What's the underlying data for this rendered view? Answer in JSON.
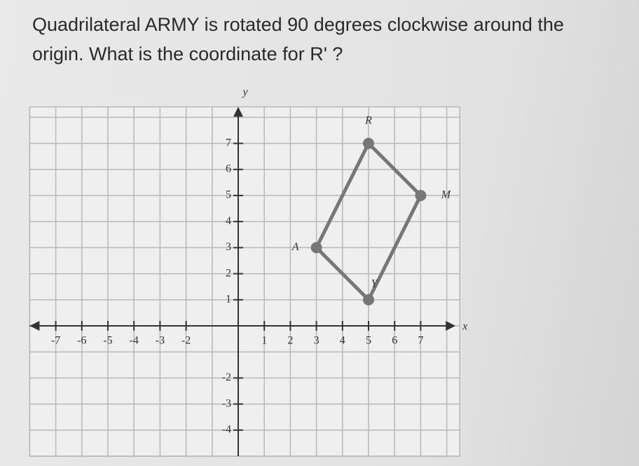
{
  "question": "Quadrilateral ARMY is rotated 90 degrees clockwise around the origin. What is the coordinate for R' ?",
  "graph": {
    "x_label": "x",
    "y_label": "y",
    "xticks": [
      -7,
      -6,
      -5,
      -4,
      -3,
      -2,
      1,
      2,
      3,
      4,
      5,
      6,
      7
    ],
    "yticks": [
      7,
      6,
      5,
      4,
      3,
      2,
      1,
      -2,
      -3,
      -4
    ],
    "xlim": [
      -8,
      8.5
    ],
    "ylim": [
      -5,
      8.4
    ],
    "vertices": [
      {
        "label": "A",
        "x": 3,
        "y": 3
      },
      {
        "label": "R",
        "x": 5,
        "y": 7
      },
      {
        "label": "M",
        "x": 7,
        "y": 5
      },
      {
        "label": "Y",
        "x": 5,
        "y": 1
      }
    ]
  }
}
